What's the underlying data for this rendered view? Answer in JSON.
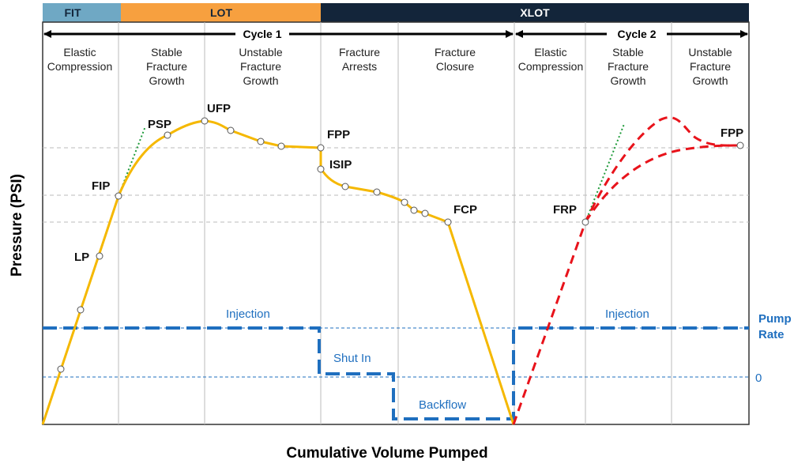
{
  "header": {
    "segments": [
      {
        "label": "FIT",
        "color": "#6fa8c4"
      },
      {
        "label": "LOT",
        "color": "#f7a03f"
      },
      {
        "label": "XLOT",
        "color": "#13253a"
      }
    ],
    "cycles": [
      "Cycle 1",
      "Cycle 2"
    ]
  },
  "phases": [
    [
      "Elastic",
      "Compression"
    ],
    [
      "Stable",
      "Fracture",
      "Growth"
    ],
    [
      "Unstable",
      "Fracture",
      "Growth"
    ],
    [
      "Fracture",
      "Arrests"
    ],
    [
      "Fracture",
      "Closure"
    ],
    [
      "Elastic",
      "Compression"
    ],
    [
      "Stable",
      "Fracture",
      "Growth"
    ],
    [
      "Unstable",
      "Fracture",
      "Growth"
    ]
  ],
  "points": {
    "lp": "LP",
    "fip": "FIP",
    "psp": "PSP",
    "ufp": "UFP",
    "fpp1": "FPP",
    "isip": "ISIP",
    "fcp": "FCP",
    "frp": "FRP",
    "fpp2": "FPP"
  },
  "rate_labels": {
    "injection1": "Injection",
    "shut_in": "Shut In",
    "backflow": "Backflow",
    "injection2": "Injection",
    "pump_rate_1": "Pump",
    "pump_rate_2": "Rate",
    "zero": "0"
  },
  "axes": {
    "y_label": "Pressure (PSI)",
    "x_label": "Cumulative Volume Pumped"
  },
  "colors": {
    "cycle1": "#f5b800",
    "cycle2": "#e8131b",
    "tangent": "#1f9b3a",
    "pump_rate": "#1f6fbf"
  }
}
